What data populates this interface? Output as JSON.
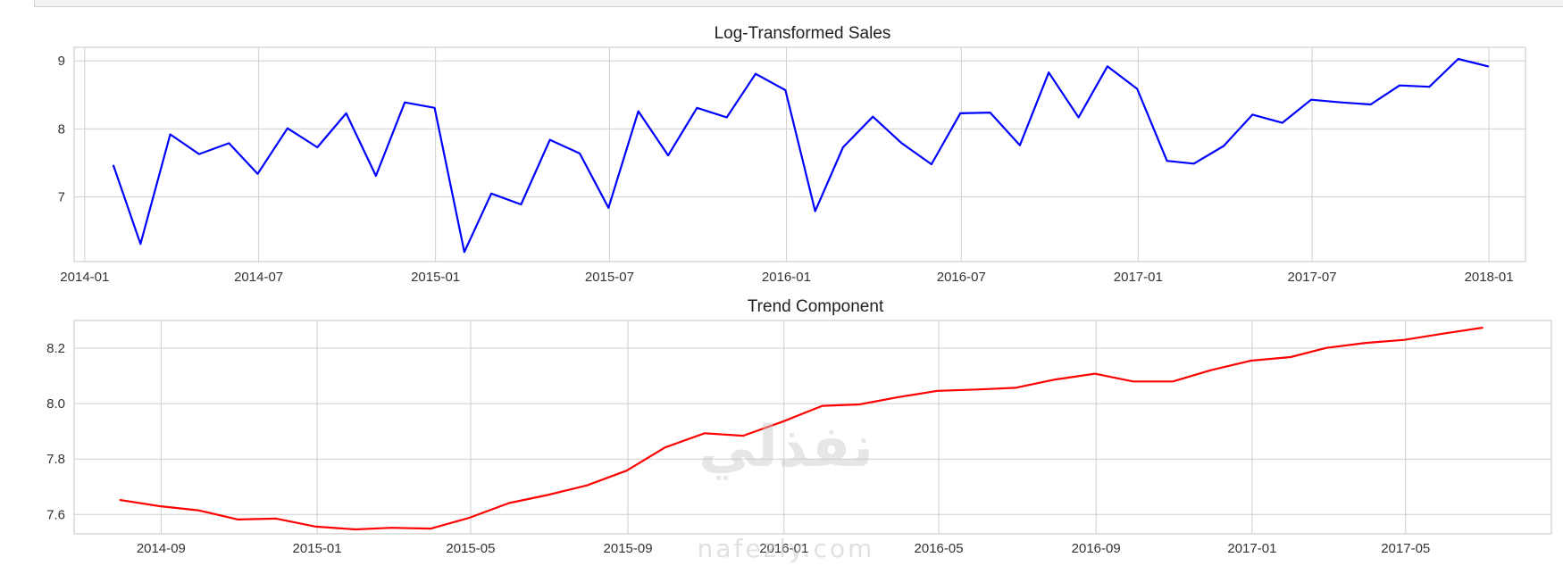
{
  "watermark": {
    "main": "نفذلي",
    "sub": "nafezly.com"
  },
  "chart_data": [
    {
      "type": "line",
      "title": "Log-Transformed Sales",
      "color": "#0000ff",
      "grid": true,
      "legend": "none",
      "ylim": [
        6.05,
        9.2
      ],
      "yticks": [
        7,
        8,
        9
      ],
      "xlim": [
        "2013-12-21",
        "2018-02-08"
      ],
      "xticks": [
        "2014-01",
        "2014-07",
        "2015-01",
        "2015-07",
        "2016-01",
        "2016-07",
        "2017-01",
        "2017-07",
        "2018-01"
      ],
      "x": [
        "2014-01-31",
        "2014-02-28",
        "2014-03-31",
        "2014-04-30",
        "2014-05-31",
        "2014-06-30",
        "2014-07-31",
        "2014-08-31",
        "2014-09-30",
        "2014-10-31",
        "2014-11-30",
        "2014-12-31",
        "2015-01-31",
        "2015-02-28",
        "2015-03-31",
        "2015-04-30",
        "2015-05-31",
        "2015-06-30",
        "2015-07-31",
        "2015-08-31",
        "2015-09-30",
        "2015-10-31",
        "2015-11-30",
        "2015-12-31",
        "2016-01-31",
        "2016-02-29",
        "2016-03-31",
        "2016-04-30",
        "2016-05-31",
        "2016-06-30",
        "2016-07-31",
        "2016-08-31",
        "2016-09-30",
        "2016-10-31",
        "2016-11-30",
        "2016-12-31",
        "2017-01-31",
        "2017-02-28",
        "2017-03-31",
        "2017-04-30",
        "2017-05-31",
        "2017-06-30",
        "2017-07-31",
        "2017-08-31",
        "2017-09-30",
        "2017-10-31",
        "2017-11-30",
        "2017-12-31"
      ],
      "y": [
        7.46,
        6.31,
        7.92,
        7.63,
        7.79,
        7.34,
        8.01,
        7.73,
        8.23,
        7.31,
        8.39,
        8.31,
        6.19,
        7.05,
        6.89,
        7.84,
        7.64,
        6.84,
        8.26,
        7.61,
        8.31,
        8.17,
        8.81,
        8.57,
        6.79,
        7.73,
        8.18,
        7.79,
        7.48,
        8.23,
        8.24,
        7.76,
        8.83,
        8.17,
        8.92,
        8.59,
        7.53,
        7.49,
        7.75,
        8.21,
        8.09,
        8.43,
        8.39,
        8.36,
        8.64,
        8.62,
        9.03,
        8.92
      ]
    },
    {
      "type": "line",
      "title": "Trend Component",
      "color": "#ff0000",
      "grid": true,
      "legend": "none",
      "ylim": [
        7.53,
        8.3
      ],
      "yticks": [
        7.6,
        7.8,
        8.0,
        8.2
      ],
      "ytick_labels": [
        "7.6",
        "7.8",
        "8.0",
        "8.2"
      ],
      "xlim": [
        "2014-06-25",
        "2017-08-23"
      ],
      "xticks": [
        "2014-09",
        "2015-01",
        "2015-05",
        "2015-09",
        "2016-01",
        "2016-05",
        "2016-09",
        "2017-01",
        "2017-05"
      ],
      "x": [
        "2014-07-31",
        "2014-08-31",
        "2014-09-30",
        "2014-10-31",
        "2014-11-30",
        "2014-12-31",
        "2015-01-31",
        "2015-02-28",
        "2015-03-31",
        "2015-04-30",
        "2015-05-31",
        "2015-06-30",
        "2015-07-31",
        "2015-08-31",
        "2015-09-30",
        "2015-10-31",
        "2015-11-30",
        "2015-12-31",
        "2016-01-31",
        "2016-02-29",
        "2016-03-31",
        "2016-04-30",
        "2016-05-31",
        "2016-06-30",
        "2016-07-31",
        "2016-08-31",
        "2016-09-30",
        "2016-10-31",
        "2016-11-30",
        "2016-12-31",
        "2017-01-31",
        "2017-02-28",
        "2017-03-31",
        "2017-04-30",
        "2017-05-31",
        "2017-06-30"
      ],
      "y": [
        7.652,
        7.63,
        7.615,
        7.582,
        7.585,
        7.556,
        7.546,
        7.552,
        7.549,
        7.588,
        7.641,
        7.67,
        7.705,
        7.758,
        7.842,
        7.893,
        7.884,
        7.935,
        7.992,
        7.997,
        8.024,
        8.046,
        8.051,
        8.057,
        8.087,
        8.108,
        8.08,
        8.08,
        8.121,
        8.155,
        8.168,
        8.201,
        8.219,
        8.23,
        8.253,
        8.274
      ]
    }
  ]
}
